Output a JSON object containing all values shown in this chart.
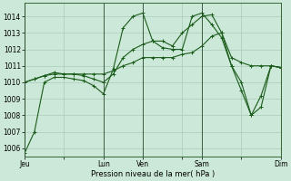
{
  "bg_color": "#cce8d8",
  "grid_color": "#aaccbb",
  "line_color": "#1a5c1a",
  "xlabel": "Pression niveau de la mer( hPa )",
  "ylim": [
    1005.5,
    1014.8
  ],
  "yticks": [
    1006,
    1007,
    1008,
    1009,
    1010,
    1011,
    1012,
    1013,
    1014
  ],
  "x_day_labels": [
    "Jeu",
    "",
    "Lun",
    "Ven",
    "",
    "Sam",
    "",
    "Dim"
  ],
  "x_day_positions": [
    0,
    4,
    8,
    12,
    16,
    18,
    22,
    26
  ],
  "vline_positions": [
    0,
    8,
    12,
    18,
    26
  ],
  "series": [
    [
      1005.7,
      1007.0,
      1010.0,
      1010.3,
      1010.3,
      1010.2,
      1010.1,
      1009.8,
      1009.3,
      1010.8,
      1013.3,
      1014.0,
      1014.2,
      1012.5,
      1012.1,
      1012.0,
      1012.0,
      1014.0,
      1014.2,
      1013.5,
      1012.7,
      1011.0,
      1009.5,
      1008.0,
      1009.2,
      1011.0,
      1010.9
    ],
    [
      1010.0,
      1010.2,
      1010.4,
      1010.5,
      1010.5,
      1010.5,
      1010.5,
      1010.5,
      1010.5,
      1010.7,
      1011.0,
      1011.2,
      1011.5,
      1011.5,
      1011.5,
      1011.5,
      1011.7,
      1011.8,
      1012.2,
      1012.8,
      1013.0,
      1011.5,
      1011.2,
      1011.0,
      1011.0,
      1011.0,
      1010.9
    ],
    [
      1010.0,
      1010.2,
      1010.4,
      1010.6,
      1010.5,
      1010.5,
      1010.4,
      1010.2,
      1010.0,
      1010.5,
      1011.5,
      1012.0,
      1012.3,
      1012.5,
      1012.5,
      1012.2,
      1013.0,
      1013.5,
      1014.0,
      1014.1,
      1013.0,
      1011.0,
      1010.0,
      1008.0,
      1008.5,
      1011.0,
      1010.9
    ]
  ],
  "n_points": 27,
  "ylabel_fontsize": 5.5,
  "xlabel_fontsize": 6.0,
  "tick_fontsize": 5.5
}
